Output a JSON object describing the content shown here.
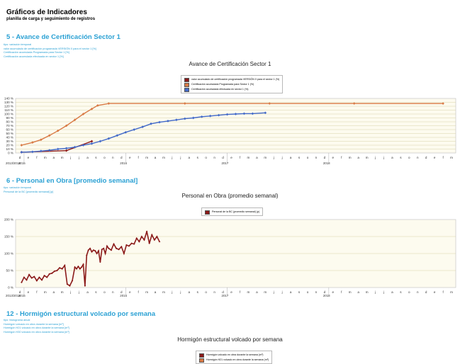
{
  "header": {
    "title": "Gráficos de Indicadores",
    "subtitle": "planilla de carga y seguimiento de registros"
  },
  "section5": {
    "title": "5 - Avance de Certificación Sector 1",
    "meta": [
      "tipo: variación temporal",
      "valor acumulado de certificación programada VERSIÓN 0 para el sector 1 [%]",
      "Certificación acumulada Programada para Sector 1 [%]",
      "Certificación acumulada efectuada en sector 1 [%]"
    ]
  },
  "section6": {
    "title": "6 - Personal en Obra [promedio semanal]",
    "meta": [
      "tipo: variación temporal",
      "Personal de la BC [promedio semanal] [p]"
    ]
  },
  "section12": {
    "title": "12 - Hormigón estructural volcado por semana",
    "meta": [
      "tipo: histograma anual",
      "Hormigón volcado en obra durante la semana [m³]",
      "Hormigón H21 volcado en obra durante la semana [m³]",
      "Hormigón H30 volcado en obra durante la semana [m³]"
    ]
  },
  "chart_data": [
    {
      "type": "line",
      "title": "Avance de Certificación Sector 1",
      "xaxis": {
        "month_labels": [
          "d",
          "e",
          "f",
          "m",
          "a",
          "m",
          "j",
          "j",
          "a",
          "s",
          "o",
          "n",
          "d",
          "e",
          "f",
          "m",
          "a",
          "m",
          "j",
          "j",
          "a",
          "s",
          "o",
          "n",
          "d",
          "e",
          "f",
          "m",
          "a",
          "m",
          "j",
          "j",
          "a",
          "s",
          "o",
          "n",
          "d",
          "e",
          "f",
          "m",
          "a",
          "m",
          "j",
          "j",
          "a",
          "s",
          "o",
          "n",
          "d",
          "e",
          "f",
          "m"
        ],
        "year_labels": [
          "2013/2014",
          "2015",
          "2016",
          "2017",
          "2018"
        ]
      },
      "yaxis": {
        "ticks": [
          "0 %",
          "10 %",
          "20 %",
          "30 %",
          "40 %",
          "50 %",
          "60 %",
          "70 %",
          "80 %",
          "90 %",
          "100 %",
          "110 %",
          "120 %",
          "130 %",
          "140 %"
        ],
        "ylim": [
          0,
          140
        ]
      },
      "legend_placement": "top-center",
      "grid": true,
      "colors": [
        "#8b1a1a",
        "#d97a45",
        "#4169c9"
      ],
      "series": [
        {
          "name": "valor acumulado de certificación programada VERSIÓN 0 para el sector 1 (%)",
          "x": [
            0.7,
            6.0,
            9.0
          ],
          "values": [
            2,
            6,
            30
          ]
        },
        {
          "name": "Certificación acumulada Programada para Sector 1 (%)",
          "x": [
            0.7,
            2,
            3,
            4,
            5,
            6,
            7,
            8,
            9,
            9.7,
            11,
            20,
            30,
            40,
            50.5
          ],
          "values": [
            20,
            27,
            34,
            45,
            57,
            70,
            85,
            100,
            113,
            122,
            127,
            127,
            127,
            127,
            127
          ]
        },
        {
          "name": "Certificación acumulada efectuada en sector 1 (%)",
          "x": [
            0.7,
            2,
            3,
            4,
            5,
            6,
            7,
            8,
            9,
            10,
            11,
            12,
            13,
            14,
            15,
            16,
            17,
            18,
            19,
            20,
            21,
            22,
            23,
            24,
            25,
            26,
            27,
            28,
            29.5
          ],
          "values": [
            2,
            3,
            5,
            7,
            10,
            12,
            15,
            20,
            24,
            30,
            37,
            45,
            53,
            60,
            67,
            75,
            79,
            82,
            85,
            88,
            90,
            93,
            95,
            97,
            99,
            100,
            101,
            101,
            103
          ]
        }
      ]
    },
    {
      "type": "line",
      "title": "Personal en Obra (promedio semanal)",
      "xaxis": {
        "month_labels": [
          "d",
          "e",
          "f",
          "m",
          "a",
          "m",
          "j",
          "j",
          "a",
          "s",
          "o",
          "n",
          "d",
          "e",
          "f",
          "m",
          "a",
          "m",
          "j",
          "j",
          "a",
          "s",
          "o",
          "n",
          "d",
          "e",
          "f",
          "m",
          "a",
          "m",
          "j",
          "j",
          "a",
          "s",
          "o",
          "n",
          "d",
          "e",
          "f",
          "m",
          "a",
          "m",
          "j",
          "j",
          "a",
          "s",
          "o",
          "n",
          "d",
          "e",
          "f",
          "m"
        ],
        "year_labels": [
          "2013/2014",
          "2015",
          "2016",
          "2017",
          "2018"
        ]
      },
      "yaxis": {
        "ticks": [
          "0 %",
          "50 %",
          "100 %",
          "150 %",
          "200 %"
        ],
        "ylim": [
          0,
          200
        ]
      },
      "legend_placement": "top-center",
      "grid": true,
      "colors": [
        "#8b1a1a"
      ],
      "series": [
        {
          "name": "Personal de la BC (promedio semanal) (p)",
          "x": [
            0.7,
            1.0,
            1.3,
            1.6,
            1.9,
            2.2,
            2.5,
            2.8,
            3.1,
            3.4,
            3.7,
            4.0,
            4.3,
            4.6,
            4.9,
            5.2,
            5.5,
            5.8,
            6.1,
            6.4,
            6.7,
            7.0,
            7.2,
            7.4,
            7.6,
            7.8,
            8.0,
            8.2,
            8.4,
            8.6,
            8.8,
            9.0,
            9.2,
            9.4,
            9.6,
            9.8,
            10.0,
            10.2,
            10.4,
            10.6,
            10.8,
            11.0,
            11.3,
            11.6,
            11.9,
            12.2,
            12.5,
            12.8,
            13.1,
            13.4,
            13.7,
            14.0,
            14.3,
            14.6,
            14.9,
            15.2,
            15.5,
            15.8,
            16.1,
            16.4,
            16.7,
            17.0
          ],
          "values": [
            15,
            30,
            22,
            38,
            28,
            32,
            20,
            30,
            22,
            35,
            30,
            40,
            42,
            48,
            50,
            58,
            55,
            65,
            10,
            5,
            20,
            60,
            55,
            62,
            55,
            60,
            68,
            5,
            95,
            110,
            115,
            105,
            110,
            108,
            100,
            108,
            75,
            112,
            115,
            100,
            122,
            115,
            110,
            128,
            115,
            112,
            120,
            100,
            125,
            122,
            130,
            128,
            145,
            135,
            150,
            140,
            165,
            130,
            155,
            140,
            150,
            135
          ]
        }
      ]
    },
    {
      "type": "bar",
      "title": "Hormigón estructural volcado por semana",
      "legend_placement": "top-center",
      "colors": [
        "#8b1a1a",
        "#d97a45"
      ],
      "series": [
        {
          "name": "Hormigón volcado en obra durante la semana (m³)"
        },
        {
          "name": "Hormigón H21 volcado en obra durante la semana (m³)"
        }
      ]
    }
  ]
}
